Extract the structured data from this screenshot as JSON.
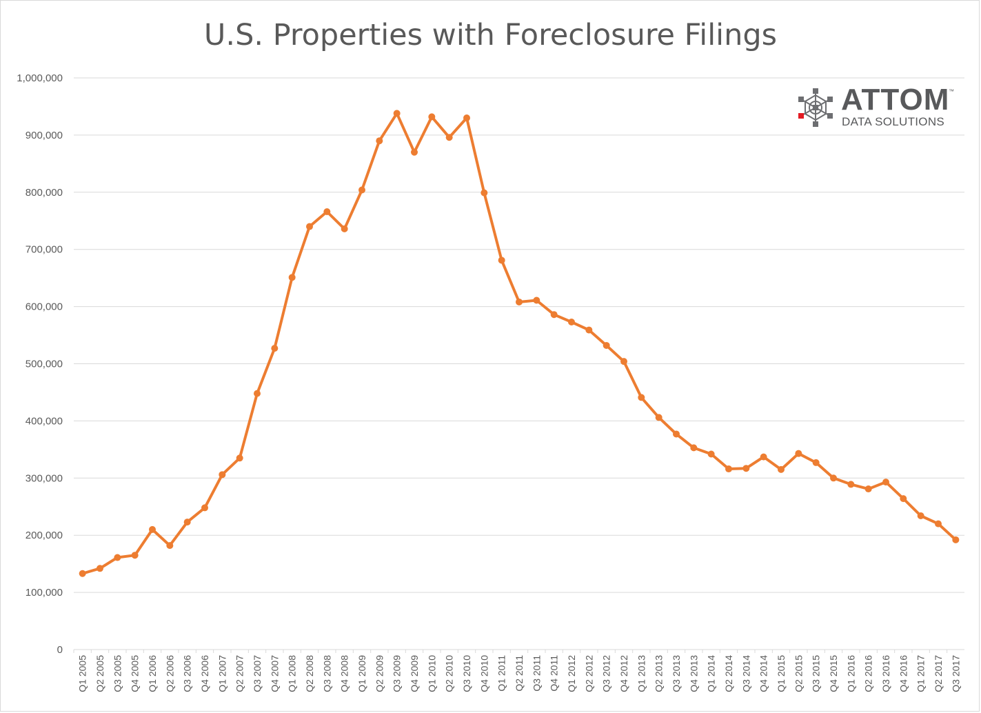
{
  "chart_data": {
    "type": "line",
    "title": "U.S. Properties with Foreclosure Filings",
    "xlabel": "",
    "ylabel": "",
    "ylim": [
      0,
      1000000
    ],
    "y_ticks": [
      "0",
      "100,000",
      "200,000",
      "300,000",
      "400,000",
      "500,000",
      "600,000",
      "700,000",
      "800,000",
      "900,000",
      "1,000,000"
    ],
    "grid": true,
    "legend": "none",
    "categories": [
      "Q1 2005",
      "Q2 2005",
      "Q3 2005",
      "Q4 2005",
      "Q1 2006",
      "Q2 2006",
      "Q3 2006",
      "Q4 2006",
      "Q1 2007",
      "Q2 2007",
      "Q3 2007",
      "Q4 2007",
      "Q1 2008",
      "Q2 2008",
      "Q3 2008",
      "Q4 2008",
      "Q1 2009",
      "Q2 2009",
      "Q3 2009",
      "Q4 2009",
      "Q1 2010",
      "Q2 2010",
      "Q3 2010",
      "Q4 2010",
      "Q1 2011",
      "Q2 2011",
      "Q3 2011",
      "Q4 2011",
      "Q1 2012",
      "Q2 2012",
      "Q3 2012",
      "Q4 2012",
      "Q1 2013",
      "Q2 2013",
      "Q3 2013",
      "Q4 2013",
      "Q1 2014",
      "Q2 2014",
      "Q3 2014",
      "Q4 2014",
      "Q1 2015",
      "Q2 2015",
      "Q3 2015",
      "Q4 2015",
      "Q1 2016",
      "Q2 2016",
      "Q3 2016",
      "Q4 2016",
      "Q1 2017",
      "Q2 2017",
      "Q3 2017"
    ],
    "series": [
      {
        "values": [
          133000,
          142000,
          161000,
          165000,
          210000,
          182000,
          223000,
          248000,
          306000,
          335000,
          448000,
          527000,
          651000,
          740000,
          766000,
          736000,
          804000,
          890000,
          938000,
          870000,
          932000,
          896000,
          930000,
          799000,
          681000,
          608000,
          611000,
          586000,
          573000,
          559000,
          532000,
          504000,
          441000,
          406000,
          377000,
          353000,
          342000,
          316000,
          317000,
          337000,
          315000,
          343000,
          327000,
          300000,
          289000,
          281000,
          293000,
          264000,
          234000,
          220000,
          192000
        ],
        "color": "#ed7d31"
      }
    ],
    "colors": {
      "line": "#ed7d31",
      "grid": "#d9d9d9",
      "text": "#595959"
    }
  },
  "logo": {
    "wordmark": "ATTOM",
    "trademark": "™",
    "subtitle": "DATA SOLUTIONS",
    "accent_color": "#e31b23",
    "icon": "atom-network-icon"
  }
}
